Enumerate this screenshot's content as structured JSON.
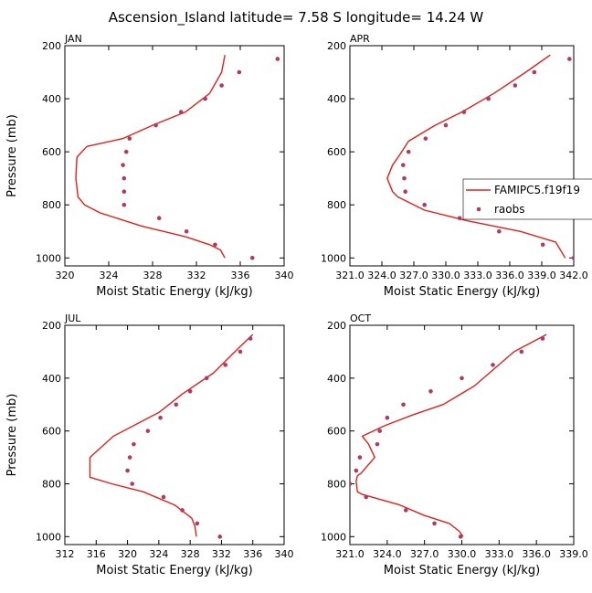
{
  "figure_title": "Ascension_Island   latitude=  7.58 S longitude=  14.24 W",
  "colors": {
    "model": "#e0201b",
    "obs": "#b03a63",
    "axis": "#000000"
  },
  "legend": {
    "model_label": "FAMIPC5.f19f19",
    "obs_label": "raobs"
  },
  "chart_data": [
    {
      "type": "line",
      "title": "JAN",
      "xlabel": "Moist Static Energy (kJ/kg)",
      "ylabel": "Pressure (mb)",
      "xlim": [
        320,
        340
      ],
      "ylim": [
        200,
        1030
      ],
      "xticks": [
        320,
        324,
        328,
        332,
        336,
        340
      ],
      "xtick_labels": [
        "320",
        "324",
        "328",
        "332",
        "336",
        "340"
      ],
      "yticks": [
        200,
        400,
        600,
        800,
        1000
      ],
      "series": [
        {
          "name": "FAMIPC5.f19f19",
          "kind": "line",
          "x": [
            334.6,
            334.2,
            333.2,
            331.0,
            327.0,
            323.2,
            321.8,
            321.2,
            321.0,
            321.1,
            322.0,
            325.3,
            328.0,
            331.0,
            333.2,
            334.3,
            334.6
          ],
          "y": [
            1000,
            970,
            950,
            920,
            880,
            830,
            800,
            770,
            700,
            620,
            580,
            550,
            500,
            450,
            380,
            300,
            235
          ]
        },
        {
          "name": "raobs",
          "kind": "scatter",
          "x": [
            337.1,
            333.7,
            331.1,
            328.6,
            325.4,
            325.4,
            325.4,
            325.3,
            325.6,
            325.9,
            328.3,
            330.6,
            332.8,
            334.3,
            335.9,
            339.4
          ],
          "y": [
            1000,
            950,
            900,
            850,
            800,
            750,
            700,
            650,
            600,
            550,
            500,
            450,
            400,
            350,
            300,
            250
          ]
        }
      ]
    },
    {
      "type": "line",
      "title": "APR",
      "xlabel": "Moist Static Energy (kJ/kg)",
      "ylabel": "",
      "xlim": [
        321.0,
        342.0
      ],
      "ylim": [
        200,
        1030
      ],
      "xticks": [
        321.0,
        324.0,
        327.0,
        330.0,
        333.0,
        336.0,
        339.0,
        342.0
      ],
      "xtick_labels": [
        "321.0",
        "324.0",
        "327.0",
        "330.0",
        "333.0",
        "336.0",
        "339.0",
        "342.0"
      ],
      "yticks": [
        200,
        400,
        600,
        800,
        1000
      ],
      "series": [
        {
          "name": "FAMIPC5.f19f19",
          "kind": "line",
          "x": [
            341.2,
            340.3,
            337.0,
            332.0,
            328.0,
            325.5,
            325.0,
            324.5,
            325.0,
            325.7,
            326.5,
            329.0,
            331.5,
            334.5,
            337.5,
            339.8
          ],
          "y": [
            1000,
            940,
            900,
            860,
            820,
            770,
            750,
            700,
            650,
            610,
            560,
            500,
            450,
            380,
            300,
            235
          ]
        },
        {
          "name": "raobs",
          "kind": "scatter",
          "x": [
            342.0,
            339.1,
            335.0,
            331.3,
            328.0,
            326.2,
            326.1,
            326.0,
            326.5,
            328.1,
            330.0,
            331.7,
            334.0,
            336.5,
            338.3,
            341.6
          ],
          "y": [
            1000,
            950,
            900,
            850,
            800,
            750,
            700,
            650,
            600,
            550,
            500,
            450,
            400,
            350,
            300,
            250
          ]
        }
      ]
    },
    {
      "type": "line",
      "title": "JUL",
      "xlabel": "Moist Static Energy (kJ/kg)",
      "ylabel": "Pressure (mb)",
      "xlim": [
        312,
        340
      ],
      "ylim": [
        200,
        1030
      ],
      "xticks": [
        312,
        316,
        320,
        324,
        328,
        332,
        336,
        340
      ],
      "xtick_labels": [
        "312",
        "316",
        "320",
        "324",
        "328",
        "332",
        "336",
        "340"
      ],
      "yticks": [
        200,
        400,
        600,
        800,
        1000
      ],
      "series": [
        {
          "name": "FAMIPC5.f19f19",
          "kind": "line",
          "x": [
            328.8,
            328.6,
            328.2,
            326.0,
            322.0,
            318.0,
            315.2,
            315.2,
            318.2,
            324.0,
            327.0,
            331.0,
            334.4,
            336.0
          ],
          "y": [
            1000,
            960,
            930,
            880,
            830,
            800,
            775,
            700,
            620,
            530,
            460,
            380,
            280,
            235
          ]
        },
        {
          "name": "raobs",
          "kind": "scatter",
          "x": [
            331.8,
            328.9,
            327.0,
            324.6,
            320.6,
            320.0,
            320.3,
            320.8,
            322.6,
            324.2,
            326.2,
            328.0,
            330.1,
            332.5,
            334.4,
            335.7
          ],
          "y": [
            1000,
            950,
            900,
            850,
            800,
            750,
            700,
            650,
            600,
            550,
            500,
            450,
            400,
            350,
            300,
            250
          ]
        }
      ]
    },
    {
      "type": "line",
      "title": "OCT",
      "xlabel": "Moist Static Energy (kJ/kg)",
      "ylabel": "",
      "xlim": [
        321.0,
        339.0
      ],
      "ylim": [
        200,
        1030
      ],
      "xticks": [
        321.0,
        324.0,
        327.0,
        330.0,
        333.0,
        336.0,
        339.0
      ],
      "xtick_labels": [
        "321.0",
        "324.0",
        "327.0",
        "330.0",
        "333.0",
        "336.0",
        "339.0"
      ],
      "yticks": [
        200,
        400,
        600,
        800,
        1000
      ],
      "series": [
        {
          "name": "FAMIPC5.f19f19",
          "kind": "line",
          "x": [
            330.1,
            329.8,
            329.0,
            327.0,
            325.0,
            322.0,
            321.6,
            321.5,
            321.6,
            321.9,
            323.0,
            322.5,
            322.0,
            323.8,
            326.0,
            328.5,
            331.0,
            334.2,
            336.8
          ],
          "y": [
            1000,
            980,
            950,
            920,
            880,
            840,
            830,
            790,
            770,
            760,
            700,
            650,
            620,
            580,
            540,
            500,
            430,
            300,
            235
          ]
        },
        {
          "name": "raobs",
          "kind": "scatter",
          "x": [
            329.9,
            327.8,
            325.5,
            322.3,
            321.0,
            321.5,
            321.8,
            323.2,
            323.4,
            324.0,
            325.3,
            327.5,
            330.0,
            332.5,
            334.8,
            336.5
          ],
          "y": [
            1000,
            950,
            900,
            850,
            800,
            750,
            700,
            650,
            600,
            550,
            500,
            450,
            400,
            350,
            300,
            250
          ]
        }
      ]
    }
  ]
}
